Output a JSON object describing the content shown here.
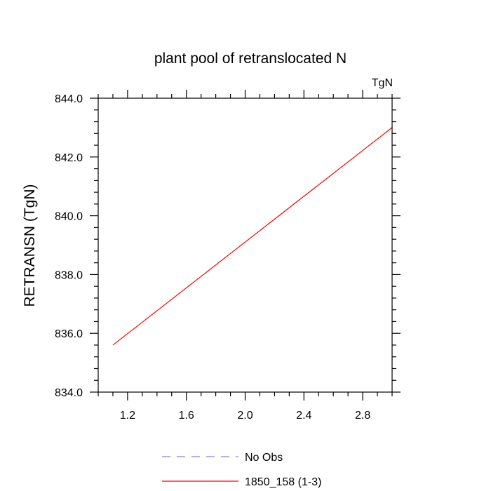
{
  "chart_data": {
    "type": "line",
    "title": "plant pool of retranslocated N",
    "units_label": "TgN",
    "xlabel": "",
    "ylabel": "RETRANSN  (TgN)",
    "xlim": [
      1.0,
      3.0
    ],
    "ylim": [
      834.0,
      844.0
    ],
    "x_ticks": [
      1.2,
      1.6,
      2.0,
      2.4,
      2.8
    ],
    "x_tick_labels": [
      "1.2",
      "1.6",
      "2.0",
      "2.4",
      "2.8"
    ],
    "y_ticks": [
      834.0,
      836.0,
      838.0,
      840.0,
      842.0,
      844.0
    ],
    "y_tick_labels": [
      "834.0",
      "836.0",
      "838.0",
      "840.0",
      "842.0",
      "844.0"
    ],
    "grid": false,
    "legend_position": "bottom",
    "series": [
      {
        "name": "1850_158 (1-3)",
        "color": "#ff0000",
        "dash": "solid",
        "x": [
          1.1,
          3.0
        ],
        "y": [
          835.6,
          843.0
        ]
      }
    ],
    "legend": [
      {
        "label": "No Obs",
        "color": "#8080ff",
        "dash": "dashed"
      },
      {
        "label": "1850_158 (1-3)",
        "color": "#ff0000",
        "dash": "solid"
      }
    ]
  }
}
